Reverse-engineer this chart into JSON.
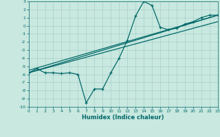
{
  "xlabel": "Humidex (Indice chaleur)",
  "background_color": "#c8e8e0",
  "grid_color": "#a8d0c8",
  "line_color": "#006868",
  "xlim": [
    0,
    23
  ],
  "ylim": [
    -10,
    3
  ],
  "xticks": [
    0,
    1,
    2,
    3,
    4,
    5,
    6,
    7,
    8,
    9,
    10,
    11,
    12,
    13,
    14,
    15,
    16,
    17,
    18,
    19,
    20,
    21,
    22,
    23
  ],
  "yticks": [
    3,
    2,
    1,
    0,
    -1,
    -2,
    -3,
    -4,
    -5,
    -6,
    -7,
    -8,
    -9,
    -10
  ],
  "curve1_x": [
    0,
    1,
    2,
    3,
    4,
    5,
    6,
    7,
    8,
    9,
    10,
    11,
    12,
    13,
    14,
    15,
    16,
    17,
    18,
    19,
    20,
    21,
    22,
    23
  ],
  "curve1_y": [
    -5.8,
    -5.3,
    -5.8,
    -5.8,
    -5.9,
    -5.8,
    -6.0,
    -9.5,
    -7.8,
    -7.8,
    -5.8,
    -4.0,
    -1.8,
    1.2,
    3.0,
    2.5,
    -0.2,
    -0.5,
    -0.3,
    0.2,
    0.5,
    1.0,
    1.3,
    1.3
  ],
  "line1_x": [
    0,
    23
  ],
  "line1_y": [
    -5.8,
    1.3
  ],
  "line2_x": [
    0,
    23
  ],
  "line2_y": [
    -5.8,
    0.5
  ],
  "line3_x": [
    0,
    23
  ],
  "line3_y": [
    -5.5,
    1.3
  ]
}
